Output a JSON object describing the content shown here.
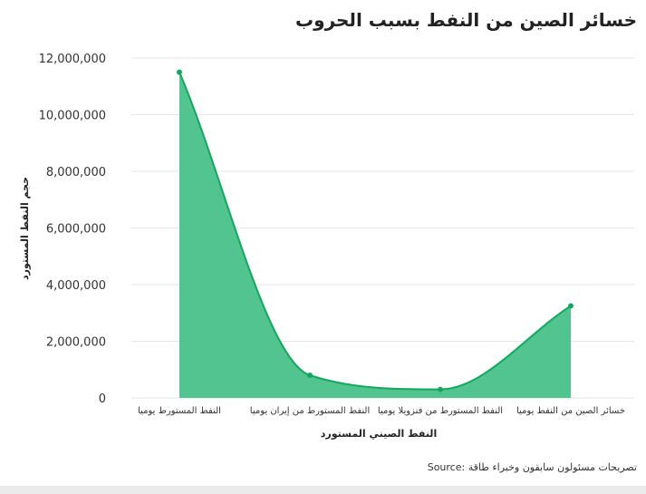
{
  "chart_data": {
    "type": "area",
    "title": "خسائر الصين من النفط بسبب الحروب",
    "xlabel": "النفط الصيني المستورد",
    "ylabel": "حجم النفط المستورد",
    "categories": [
      "النفط المستورط يوميا",
      "النفط المستورط من إيران يوميا",
      "النفط المستورط من فنزويلا يوميا",
      "خسائر الصين من النفط يوميا"
    ],
    "series": [
      {
        "values": [
          11500000,
          800000,
          300000,
          3250000
        ]
      }
    ],
    "ylim": [
      0,
      12000000
    ],
    "yticks": [
      0,
      2000000,
      4000000,
      6000000,
      8000000,
      10000000,
      12000000
    ],
    "grid": true,
    "legend": "none",
    "source": "Source: تصريحات مسئولون سابقون وخبراء طاقة",
    "colors": {
      "fill": "#52c48f",
      "line": "#13a85e",
      "grid": "#e6e6e6"
    }
  }
}
